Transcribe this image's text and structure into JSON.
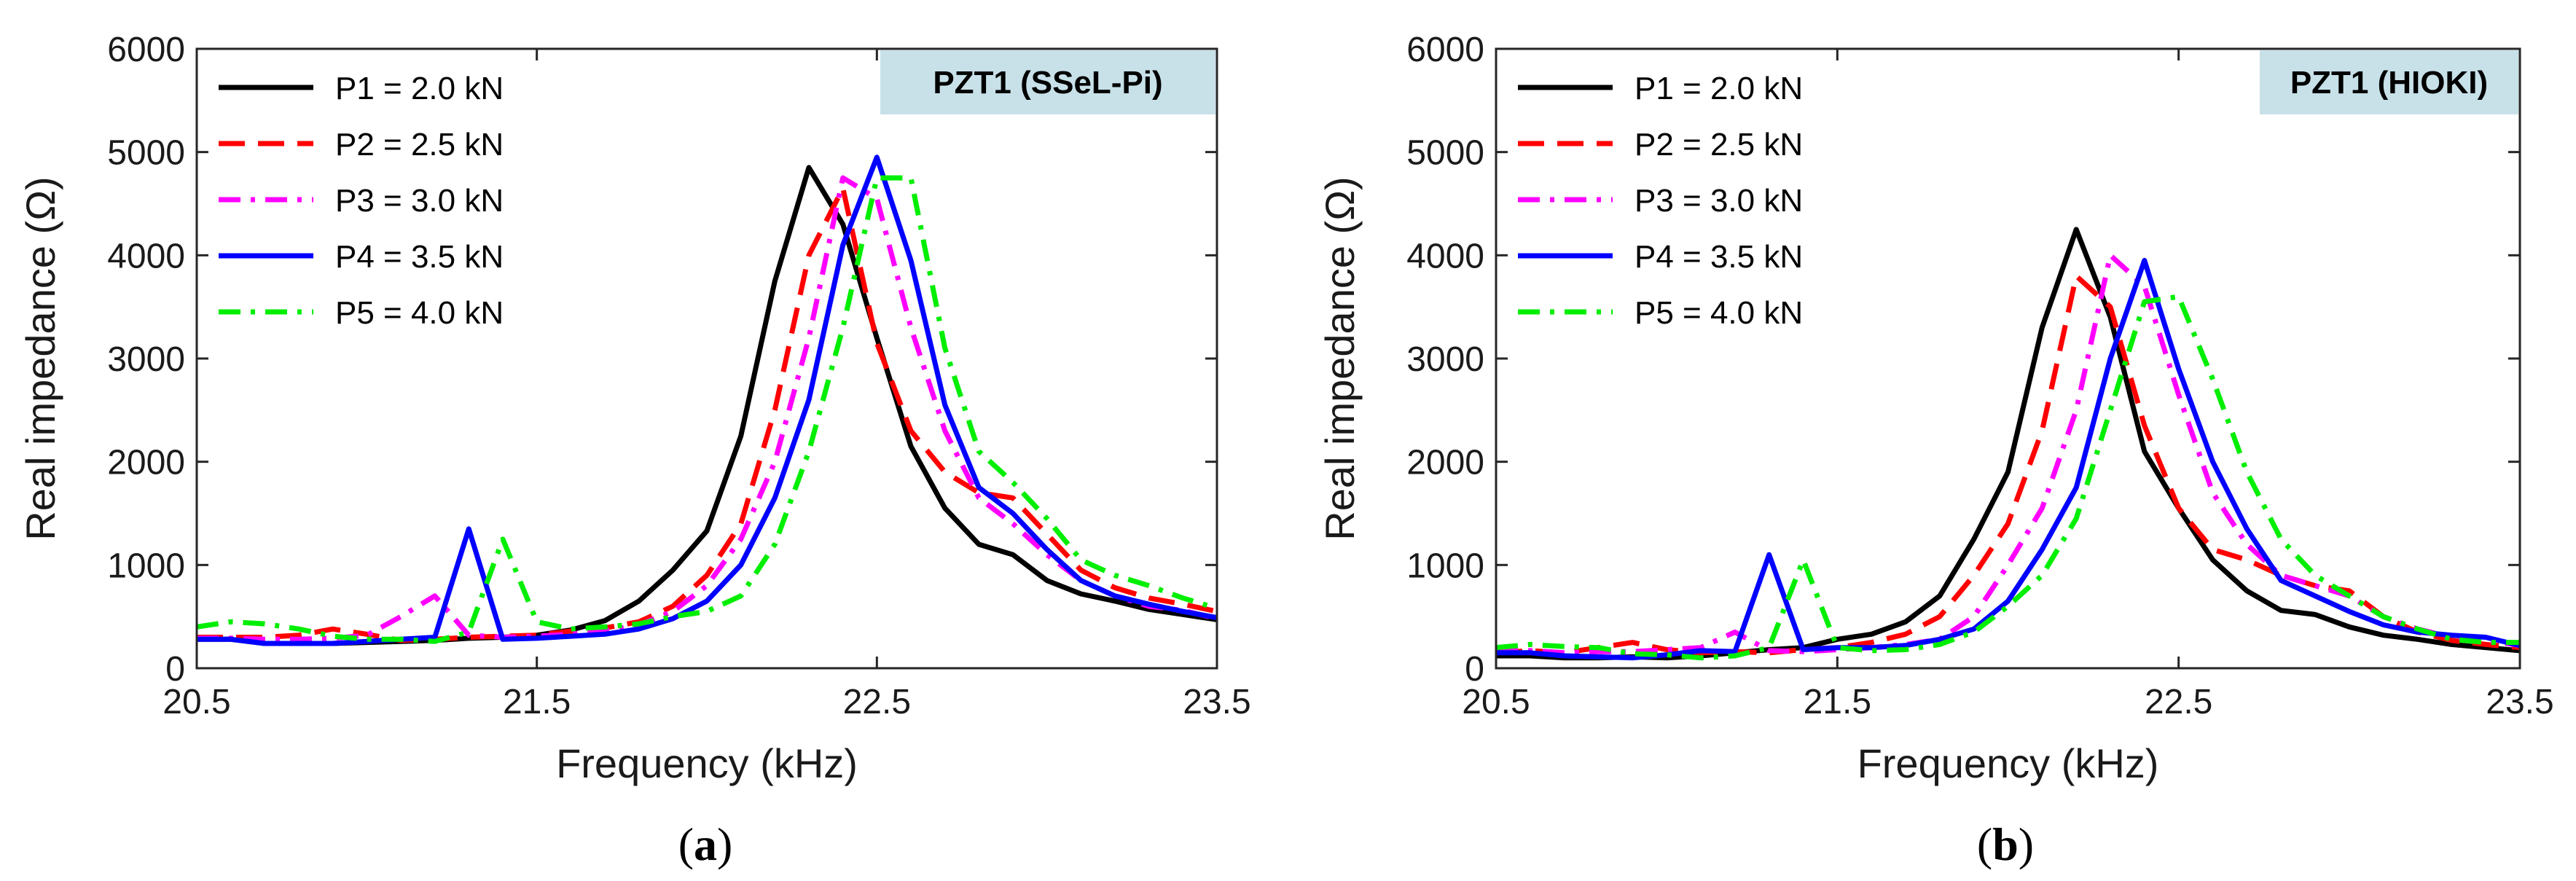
{
  "chart_data": [
    {
      "type": "line",
      "panel_caption": {
        "open": "(",
        "letter": "a",
        "close": ")"
      },
      "badge": "PZT1 (SSeL-Pi)",
      "xlabel": "Frequency (kHz)",
      "ylabel": "Real impedance (Ω)",
      "xlim": [
        20.5,
        23.5
      ],
      "ylim": [
        0,
        6000
      ],
      "xticks": [
        "20.5",
        "21.5",
        "22.5",
        "23.5"
      ],
      "yticks": [
        "0",
        "1000",
        "2000",
        "3000",
        "4000",
        "5000",
        "6000"
      ],
      "x": [
        20.5,
        20.6,
        20.7,
        20.8,
        20.9,
        21.0,
        21.1,
        21.2,
        21.3,
        21.4,
        21.5,
        21.6,
        21.7,
        21.8,
        21.9,
        22.0,
        22.1,
        22.2,
        22.3,
        22.4,
        22.5,
        22.6,
        22.7,
        22.8,
        22.9,
        23.0,
        23.1,
        23.2,
        23.3,
        23.4,
        23.5
      ],
      "series": [
        {
          "name": "P1 = 2.0 kN",
          "color": "#000000",
          "dash": "solid",
          "values": [
            280,
            280,
            240,
            240,
            240,
            250,
            260,
            270,
            290,
            300,
            320,
            370,
            460,
            650,
            950,
            1330,
            2250,
            3750,
            4850,
            4300,
            3200,
            2150,
            1550,
            1200,
            1100,
            850,
            720,
            650,
            570,
            520,
            470
          ]
        },
        {
          "name": "P2 = 2.5 kN",
          "color": "#ff0000",
          "dash": "dashed",
          "values": [
            300,
            300,
            300,
            320,
            380,
            330,
            270,
            280,
            300,
            310,
            320,
            360,
            390,
            450,
            600,
            900,
            1400,
            2500,
            4000,
            4650,
            3150,
            2300,
            1900,
            1700,
            1650,
            1300,
            950,
            780,
            680,
            620,
            550
          ]
        },
        {
          "name": "P3 = 3.0 kN",
          "color": "#ff00ff",
          "dash": "dashdot",
          "values": [
            290,
            290,
            280,
            280,
            290,
            320,
            500,
            700,
            320,
            300,
            310,
            330,
            360,
            420,
            550,
            800,
            1250,
            2000,
            3200,
            4750,
            4550,
            3300,
            2300,
            1650,
            1400,
            1100,
            850,
            700,
            600,
            560,
            480
          ]
        },
        {
          "name": "P4 = 3.5 kN",
          "color": "#0000ff",
          "dash": "solid",
          "values": [
            280,
            280,
            240,
            240,
            240,
            260,
            280,
            300,
            1350,
            280,
            290,
            310,
            330,
            380,
            480,
            650,
            1000,
            1650,
            2600,
            4100,
            4950,
            3950,
            2550,
            1750,
            1500,
            1150,
            850,
            700,
            620,
            550,
            490
          ]
        },
        {
          "name": "P5 = 4.0 kN",
          "color": "#00ee00",
          "dash": "dashdot",
          "values": [
            400,
            450,
            430,
            380,
            310,
            280,
            280,
            260,
            350,
            1250,
            450,
            380,
            400,
            430,
            500,
            550,
            700,
            1200,
            2100,
            3300,
            4750,
            4750,
            3100,
            2100,
            1800,
            1450,
            1050,
            900,
            800,
            680,
            580
          ]
        }
      ]
    },
    {
      "type": "line",
      "panel_caption": {
        "open": "(",
        "letter": "b",
        "close": ")"
      },
      "badge": "PZT1 (HIOKI)",
      "xlabel": "Frequency (kHz)",
      "ylabel": "Real impedance (Ω)",
      "xlim": [
        20.5,
        23.5
      ],
      "ylim": [
        0,
        6000
      ],
      "xticks": [
        "20.5",
        "21.5",
        "22.5",
        "23.5"
      ],
      "yticks": [
        "0",
        "1000",
        "2000",
        "3000",
        "4000",
        "5000",
        "6000"
      ],
      "x": [
        20.5,
        20.6,
        20.7,
        20.8,
        20.9,
        21.0,
        21.1,
        21.2,
        21.3,
        21.4,
        21.5,
        21.6,
        21.7,
        21.8,
        21.9,
        22.0,
        22.1,
        22.2,
        22.3,
        22.4,
        22.5,
        22.6,
        22.7,
        22.8,
        22.9,
        23.0,
        23.1,
        23.2,
        23.3,
        23.4,
        23.5
      ],
      "series": [
        {
          "name": "P1 = 2.0 kN",
          "color": "#000000",
          "dash": "solid",
          "values": [
            120,
            120,
            100,
            100,
            110,
            100,
            120,
            150,
            180,
            200,
            280,
            330,
            450,
            700,
            1250,
            1900,
            3300,
            4250,
            3400,
            2100,
            1550,
            1050,
            750,
            560,
            520,
            400,
            320,
            280,
            230,
            200,
            170
          ]
        },
        {
          "name": "P2 = 2.5 kN",
          "color": "#ff0000",
          "dash": "dashed",
          "values": [
            150,
            170,
            150,
            200,
            250,
            180,
            150,
            160,
            150,
            180,
            200,
            250,
            330,
            500,
            900,
            1400,
            2300,
            3800,
            3500,
            2350,
            1550,
            1150,
            1050,
            900,
            800,
            750,
            500,
            350,
            270,
            230,
            200
          ]
        },
        {
          "name": "P3 = 3.0 kN",
          "color": "#ff00ff",
          "dash": "dashdot",
          "values": [
            170,
            170,
            150,
            160,
            160,
            180,
            200,
            350,
            170,
            160,
            180,
            200,
            230,
            280,
            500,
            1000,
            1550,
            2500,
            4000,
            3700,
            2650,
            1700,
            1200,
            900,
            800,
            700,
            500,
            380,
            300,
            270,
            220
          ]
        },
        {
          "name": "P4 = 3.5 kN",
          "color": "#0000ff",
          "dash": "solid",
          "values": [
            150,
            150,
            120,
            110,
            100,
            130,
            170,
            160,
            1100,
            180,
            200,
            200,
            220,
            280,
            380,
            650,
            1150,
            1750,
            3000,
            3950,
            2900,
            2000,
            1350,
            850,
            700,
            550,
            420,
            350,
            320,
            300,
            220
          ]
        },
        {
          "name": "P5 = 4.0 kN",
          "color": "#00ee00",
          "dash": "dashdot",
          "values": [
            200,
            230,
            210,
            200,
            140,
            130,
            100,
            120,
            200,
            1050,
            200,
            170,
            180,
            230,
            350,
            600,
            900,
            1450,
            2500,
            3550,
            3600,
            2800,
            1900,
            1250,
            900,
            700,
            500,
            380,
            280,
            250,
            250
          ]
        }
      ]
    }
  ]
}
